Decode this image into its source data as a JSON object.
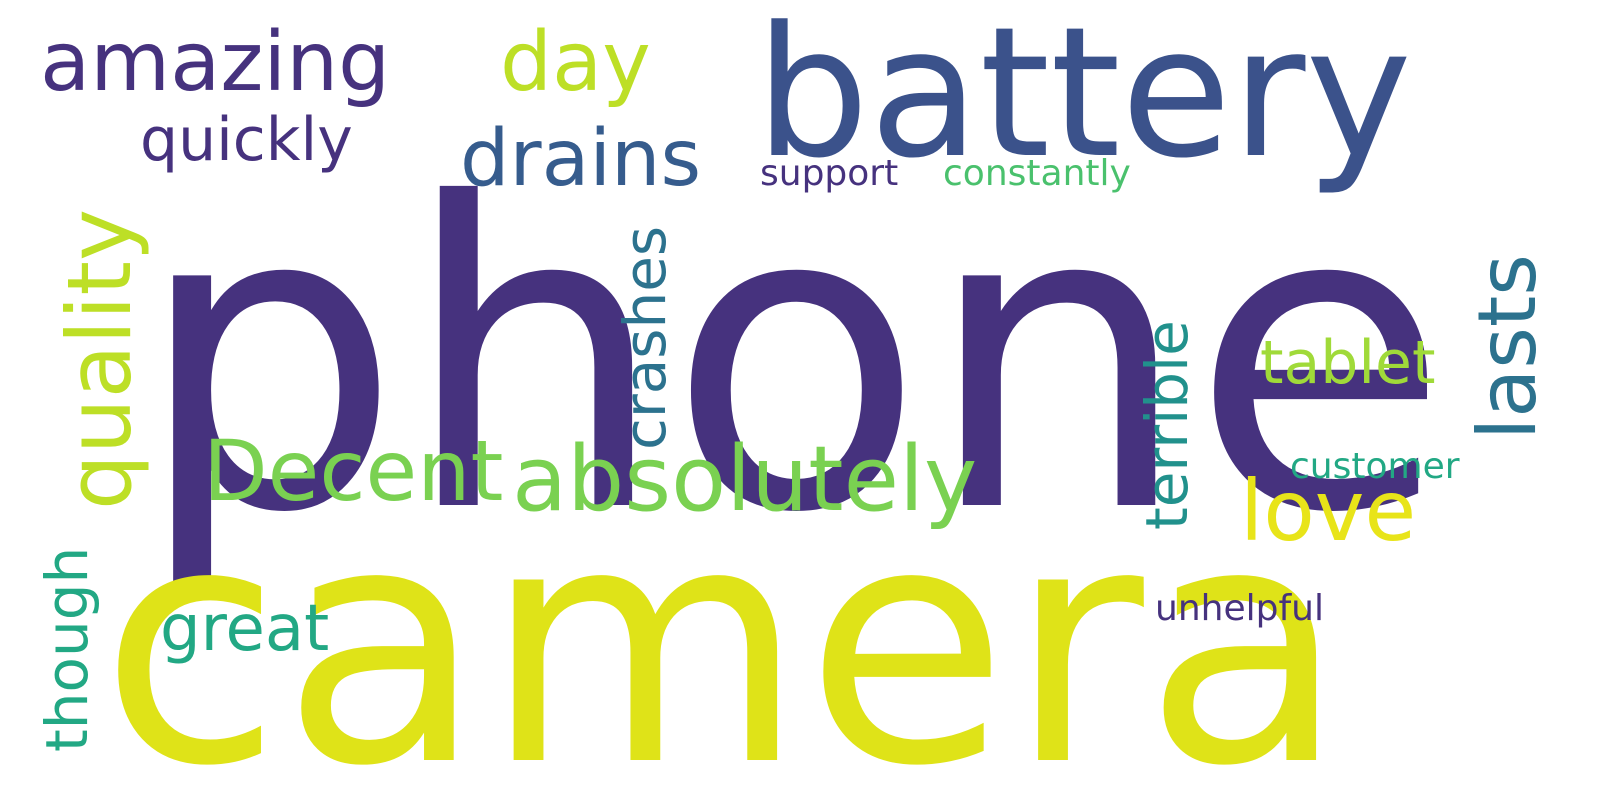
{
  "words": [
    {
      "id": "phone",
      "text": "phone",
      "color": "#46327e",
      "orientation": "horizontal"
    },
    {
      "id": "camera",
      "text": "camera",
      "color": "#dfe318",
      "orientation": "horizontal"
    },
    {
      "id": "battery",
      "text": "battery",
      "color": "#3b528b",
      "orientation": "horizontal"
    },
    {
      "id": "amazing",
      "text": "amazing",
      "color": "#46327e",
      "orientation": "horizontal"
    },
    {
      "id": "day",
      "text": "day",
      "color": "#bddf26",
      "orientation": "horizontal"
    },
    {
      "id": "quality",
      "text": "quality",
      "color": "#bddf26",
      "orientation": "vertical"
    },
    {
      "id": "quickly",
      "text": "quickly",
      "color": "#46327e",
      "orientation": "horizontal"
    },
    {
      "id": "drains",
      "text": "drains",
      "color": "#365c8d",
      "orientation": "horizontal"
    },
    {
      "id": "support",
      "text": "support",
      "color": "#46327e",
      "orientation": "horizontal"
    },
    {
      "id": "constantly",
      "text": "constantly",
      "color": "#4ac16d",
      "orientation": "horizontal"
    },
    {
      "id": "crashes",
      "text": "crashes",
      "color": "#2c728e",
      "orientation": "vertical"
    },
    {
      "id": "terrible",
      "text": "terrible",
      "color": "#21918c",
      "orientation": "vertical"
    },
    {
      "id": "lasts",
      "text": "lasts",
      "color": "#2c728e",
      "orientation": "vertical"
    },
    {
      "id": "tablet",
      "text": "tablet",
      "color": "#a0da39",
      "orientation": "horizontal"
    },
    {
      "id": "decent",
      "text": "Decent",
      "color": "#7ad151",
      "orientation": "horizontal"
    },
    {
      "id": "absolutely",
      "text": "absolutely",
      "color": "#7ad151",
      "orientation": "horizontal"
    },
    {
      "id": "love",
      "text": "love",
      "color": "#e8e419",
      "orientation": "horizontal"
    },
    {
      "id": "customer",
      "text": "customer",
      "color": "#22a884",
      "orientation": "horizontal"
    },
    {
      "id": "though",
      "text": "though",
      "color": "#22a884",
      "orientation": "vertical"
    },
    {
      "id": "great",
      "text": "great",
      "color": "#22a884",
      "orientation": "horizontal"
    },
    {
      "id": "unhelpful",
      "text": "unhelpful",
      "color": "#46327e",
      "orientation": "horizontal"
    }
  ]
}
